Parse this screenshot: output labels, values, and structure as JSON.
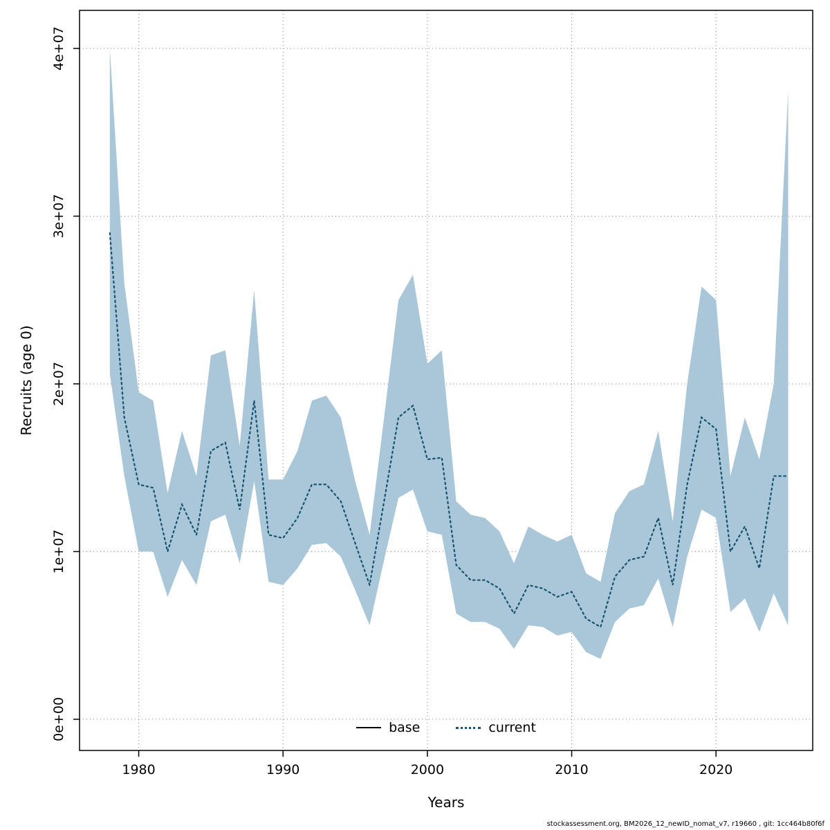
{
  "footer": {
    "text": "stockassessment.org, BM2026_12_newID_nomat_v7, r19660 , git: 1cc464b80f6f"
  },
  "legend": {
    "base_label": "base",
    "current_label": "current"
  },
  "colors": {
    "band": "#a9c7d8",
    "line": "#14536f",
    "base_line": "#000000",
    "grid": "#7f7f7f",
    "axis": "#000000"
  },
  "chart_data": {
    "type": "area",
    "title": "",
    "xlabel": "Years",
    "ylabel": "Recruits (age 0)",
    "grid": true,
    "legend_position": "bottom-center",
    "xlim": [
      1975.9,
      2026.7
    ],
    "ylim": [
      -1860000,
      42270000
    ],
    "xticks": [
      1980,
      1990,
      2000,
      2010,
      2020
    ],
    "xtick_labels": [
      "1980",
      "1990",
      "2000",
      "2010",
      "2020"
    ],
    "yticks": [
      0,
      10000000,
      20000000,
      30000000,
      40000000
    ],
    "ytick_labels": [
      "0e+00",
      "1e+07",
      "2e+07",
      "3e+07",
      "4e+07"
    ],
    "years": [
      1978,
      1979,
      1980,
      1981,
      1982,
      1983,
      1984,
      1985,
      1986,
      1987,
      1988,
      1989,
      1990,
      1991,
      1992,
      1993,
      1994,
      1995,
      1996,
      1997,
      1998,
      1999,
      2000,
      2001,
      2002,
      2003,
      2004,
      2005,
      2006,
      2007,
      2008,
      2009,
      2010,
      2011,
      2012,
      2013,
      2014,
      2015,
      2016,
      2017,
      2018,
      2019,
      2020,
      2021,
      2022,
      2023,
      2024,
      2025
    ],
    "series": [
      {
        "name": "current",
        "style": "dotted",
        "values": [
          29000000,
          18000000,
          14000000,
          13800000,
          10000000,
          12800000,
          11000000,
          16000000,
          16500000,
          12500000,
          19000000,
          11000000,
          10800000,
          12000000,
          14000000,
          14000000,
          13000000,
          10500000,
          8000000,
          13000000,
          18000000,
          18700000,
          15500000,
          15600000,
          9200000,
          8300000,
          8300000,
          7800000,
          6300000,
          8000000,
          7800000,
          7300000,
          7600000,
          6000000,
          5500000,
          8500000,
          9500000,
          9700000,
          12000000,
          8000000,
          14000000,
          18000000,
          17300000,
          10000000,
          11500000,
          9000000,
          14500000,
          14500000
        ]
      }
    ],
    "band": {
      "name": "confidence-interval",
      "lower": [
        20600000,
        14500000,
        10000000,
        10000000,
        7300000,
        9500000,
        8000000,
        11800000,
        12200000,
        9300000,
        14200000,
        8200000,
        8000000,
        9000000,
        10400000,
        10500000,
        9700000,
        7700000,
        5600000,
        9500000,
        13200000,
        13700000,
        11200000,
        11000000,
        6300000,
        5800000,
        5800000,
        5400000,
        4200000,
        5600000,
        5500000,
        5000000,
        5200000,
        4000000,
        3600000,
        5800000,
        6600000,
        6800000,
        8400000,
        5500000,
        9700000,
        12500000,
        12000000,
        6400000,
        7200000,
        5200000,
        7500000,
        5600000
      ],
      "upper": [
        40000000,
        26000000,
        19500000,
        19000000,
        13500000,
        17200000,
        14500000,
        21700000,
        22000000,
        16300000,
        25600000,
        14300000,
        14300000,
        16000000,
        19000000,
        19300000,
        18000000,
        14200000,
        11000000,
        18000000,
        25000000,
        26500000,
        21200000,
        22000000,
        13000000,
        12200000,
        12000000,
        11200000,
        9300000,
        11500000,
        11000000,
        10600000,
        11000000,
        8700000,
        8200000,
        12300000,
        13600000,
        14000000,
        17200000,
        11800000,
        20000000,
        25800000,
        25000000,
        14500000,
        18000000,
        15500000,
        20000000,
        37500000
      ]
    }
  }
}
